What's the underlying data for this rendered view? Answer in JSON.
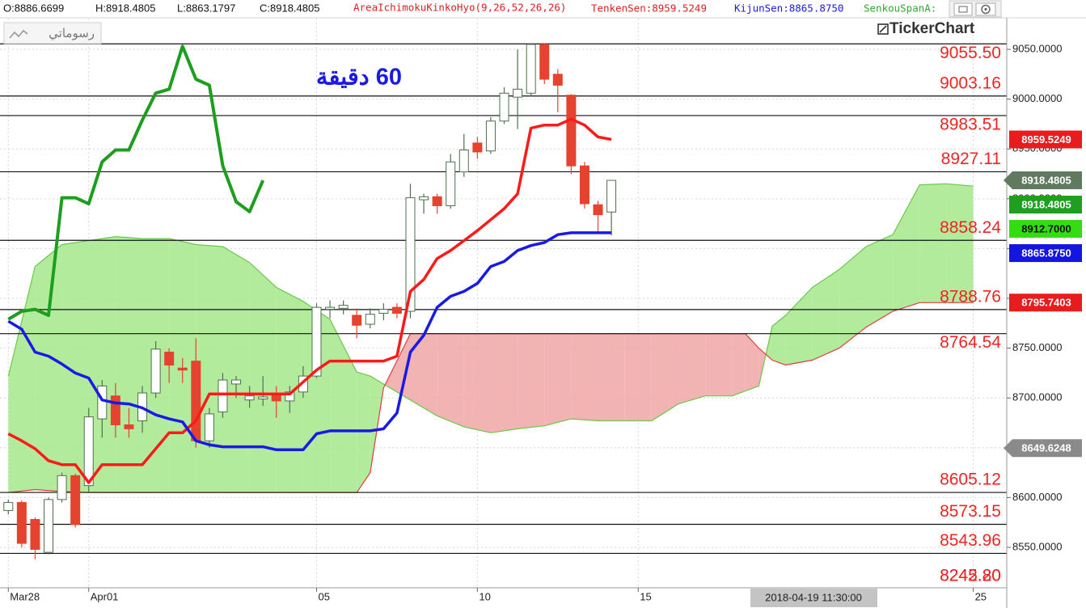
{
  "header": {
    "ohlc": [
      "O:8886.6699",
      "H:8918.4805",
      "L:8863.1797",
      "C:8918.4805"
    ],
    "indicator": "AreaIchimokuKinkoHyo(9,26,52,26,26)",
    "tenkan": "TenkenSen:8959.5249",
    "kijun": "KijunSen:8865.8750",
    "senkou": "SenkouSpanA:"
  },
  "toolbar": {
    "drawings": "رسوماتي",
    "brand": "TickerChart"
  },
  "chart_data": {
    "type": "candlestick",
    "title": "60 دقيقة",
    "crosshair_label": "2018-04-19 11:30:00",
    "xlim": [
      -0.5,
      74.5
    ],
    "xticks": [
      {
        "value": 0,
        "label": "Mar28"
      },
      {
        "value": 6,
        "label": "Apr01"
      },
      {
        "value": 23,
        "label": "05"
      },
      {
        "value": 35,
        "label": "10"
      },
      {
        "value": 47,
        "label": "15"
      },
      {
        "value": 72,
        "label": "25"
      }
    ],
    "ylim": [
      8509.4,
      9054.9
    ],
    "yticks": [
      {
        "value": 9050,
        "label": "9050.0000"
      },
      {
        "value": 9000,
        "label": "9000.0000"
      },
      {
        "value": 8950,
        "label": "8950.0000"
      },
      {
        "value": 8900,
        "label": "8900.0000"
      },
      {
        "value": 8850,
        "label": "8850.0000"
      },
      {
        "value": 8800,
        "label": "8800.0000"
      },
      {
        "value": 8750,
        "label": "8750.0000"
      },
      {
        "value": 8700,
        "label": "8700.0000"
      },
      {
        "value": 8650,
        "label": "8650.0000"
      },
      {
        "value": 8600,
        "label": "8600.0000"
      },
      {
        "value": 8550,
        "label": "8550.0000"
      }
    ],
    "grid": true,
    "candles": {
      "up_color": "#ffffff",
      "up_stroke": "#4f6f4f",
      "down_color": "#e5432f",
      "open": [
        8587,
        8595,
        8578,
        8545,
        8598,
        8622,
        8612,
        8679,
        8702,
        8673,
        8677,
        8705,
        8746,
        8730,
        8737,
        8657,
        8686,
        8714,
        8698,
        8699,
        8705,
        8697,
        8706,
        8722,
        8789,
        8790,
        8783,
        8774,
        8785,
        8791,
        8787,
        8899,
        8902,
        8893,
        8927,
        8956,
        8948,
        8978,
        9002,
        9006,
        9055,
        9025,
        9004,
        8933,
        8894,
        8886.6699
      ],
      "high": [
        8598,
        8597,
        8580,
        8600,
        8625,
        8624,
        8690,
        8718,
        8715,
        8690,
        8712,
        8757,
        8750,
        8740,
        8760,
        8690,
        8725,
        8722,
        8712,
        8722,
        8712,
        8712,
        8732,
        8795,
        8798,
        8798,
        8790,
        8790,
        8795,
        8795,
        8915,
        8905,
        8905,
        8945,
        8965,
        8962,
        8982,
        9012,
        9050,
        9056,
        9056,
        9030,
        9005,
        8937,
        8898,
        8918.4805
      ],
      "low": [
        8583,
        8550,
        8538,
        8543,
        8595,
        8570,
        8605,
        8660,
        8660,
        8660,
        8665,
        8700,
        8715,
        8715,
        8650,
        8650,
        8680,
        8700,
        8690,
        8692,
        8680,
        8685,
        8700,
        8720,
        8780,
        8784,
        8760,
        8770,
        8778,
        8780,
        8780,
        8885,
        8885,
        8890,
        8922,
        8940,
        8945,
        8975,
        8970,
        9003,
        9015,
        8987,
        8925,
        8890,
        8865,
        8863.1797
      ],
      "close": [
        8595,
        8554,
        8548,
        8598,
        8622,
        8573,
        8681,
        8712,
        8673,
        8669,
        8705,
        8749,
        8733,
        8728,
        8657,
        8684,
        8718,
        8718,
        8702,
        8701,
        8697,
        8706,
        8722,
        8791,
        8791,
        8793,
        8773,
        8784,
        8789,
        8785,
        8901,
        8902,
        8893,
        8937,
        8949,
        8947,
        8978,
        9006,
        9010,
        9055,
        9020,
        9014,
        8933,
        8895,
        8884,
        8918.4805
      ]
    },
    "lines": [
      {
        "color": "#ff1a1a",
        "width": 3.5,
        "values": [
          8664,
          8657,
          8649,
          8637,
          8633,
          8633,
          8615,
          8633,
          8633,
          8633,
          8633,
          8649,
          8665,
          8665,
          8677,
          8704,
          8704,
          8704,
          8704,
          8704,
          8704,
          8704,
          8716,
          8728,
          8737,
          8737,
          8737,
          8737,
          8737,
          8742,
          8807,
          8819,
          8840,
          8848,
          8858,
          8868,
          8879,
          8890,
          8905,
          8971,
          8974,
          8974,
          8980,
          8974,
          8962,
          8959.5249
        ]
      },
      {
        "color": "#1a1ae6",
        "width": 3.5,
        "values": [
          8777,
          8769,
          8746,
          8742,
          8734,
          8725,
          8720,
          8698,
          8695,
          8694,
          8690,
          8683,
          8679,
          8676,
          8657,
          8653,
          8651,
          8651,
          8651,
          8651,
          8648,
          8648,
          8648,
          8664,
          8667,
          8667,
          8667,
          8667,
          8669,
          8685,
          8746,
          8763,
          8791,
          8802,
          8807,
          8815,
          8832,
          8837,
          8848,
          8853,
          8856,
          8864,
          8865.875,
          8865.875,
          8865.875,
          8865.875
        ]
      },
      {
        "color": "#1e9e1e",
        "width": 4,
        "values": [
          8779,
          8787,
          8789,
          8783,
          8901,
          8901,
          8895,
          8937,
          8949,
          8949,
          8979,
          9006,
          9010,
          9053,
          9020,
          9014,
          8933,
          8897,
          8887,
          8918.4805,
          null,
          null,
          null,
          null,
          null,
          null,
          null,
          null,
          null,
          null,
          null,
          null,
          null,
          null,
          null,
          null,
          null,
          null,
          null,
          null,
          null,
          null,
          null,
          null,
          null,
          null
        ]
      }
    ],
    "cloud": {
      "up_color": "#a6e88c",
      "down_color": "#f0a6a6",
      "a_color": "#6cc84c",
      "b_color": "#e03c3c",
      "x": [
        0,
        2,
        4,
        6,
        8,
        10,
        12,
        14,
        16,
        18,
        20,
        22,
        24,
        26,
        27,
        28,
        30,
        32,
        34,
        36,
        38,
        40,
        42,
        44,
        46,
        48,
        50,
        52,
        54,
        55,
        56,
        57,
        58,
        60,
        62,
        64,
        66,
        68,
        70,
        72
      ],
      "span_a": [
        8722,
        8832,
        8854,
        8858,
        8862,
        8860,
        8860,
        8854,
        8852,
        8836,
        8811,
        8797,
        8779,
        8726,
        8722,
        8714,
        8698,
        8682,
        8671,
        8665,
        8669,
        8672,
        8679,
        8677,
        8677,
        8677,
        8694,
        8702,
        8702,
        8707,
        8712,
        8772,
        8783,
        8811,
        8829,
        8852,
        8864,
        8914,
        8915,
        8912.7
      ],
      "span_b": [
        8605,
        8608,
        8606,
        8605,
        8605,
        8605,
        8605,
        8605,
        8605,
        8605,
        8605,
        8605,
        8605,
        8605,
        8625,
        8710,
        8764.54,
        8764.54,
        8764.54,
        8764.54,
        8764.54,
        8764.54,
        8764.54,
        8764.54,
        8764.54,
        8764.54,
        8764.54,
        8764.54,
        8764.54,
        8764.54,
        8750,
        8738,
        8733,
        8738,
        8750,
        8771,
        8787,
        8795.74,
        8795.74,
        8795.7403
      ]
    },
    "levels": {
      "color": "#f02424",
      "values": [
        9055.5,
        9003.16,
        8983.51,
        8927.11,
        8858.24,
        8788.76,
        8764.54,
        8605.12,
        8573.15,
        8543.96,
        8245.2,
        8242.8
      ],
      "value_labels": [
        "9055.50",
        "9003.16",
        "8983.51",
        "8927.11",
        "8858.24",
        "8788.76",
        "8764.54",
        "8605.12",
        "8573.15",
        "8543.96",
        "8245.20",
        "8242.80"
      ]
    },
    "price_tags": {
      "values": [
        8959.5249,
        8918.4805,
        8918.4805,
        8912.7,
        8865.875,
        8795.7403,
        8649.6248
      ],
      "value_labels": [
        "8959.5249",
        "8918.4805",
        "8918.4805",
        "8912.7000",
        "8865.8750",
        "8795.7403",
        "8649.6248"
      ],
      "colors": [
        "#e81c1c",
        "#5f7a5f",
        "#1f9f1f",
        "#33dd11",
        "#1515e0",
        "#e81c1c",
        "#8a8a8a"
      ],
      "text_colors": [
        "#ffffff",
        "#ffffff",
        "#ffffff",
        "#111111",
        "#ffffff",
        "#ffffff",
        "#ffffff"
      ],
      "shapes": [
        "box",
        "arrow",
        "box",
        "box",
        "box",
        "box",
        "arrow"
      ]
    }
  }
}
